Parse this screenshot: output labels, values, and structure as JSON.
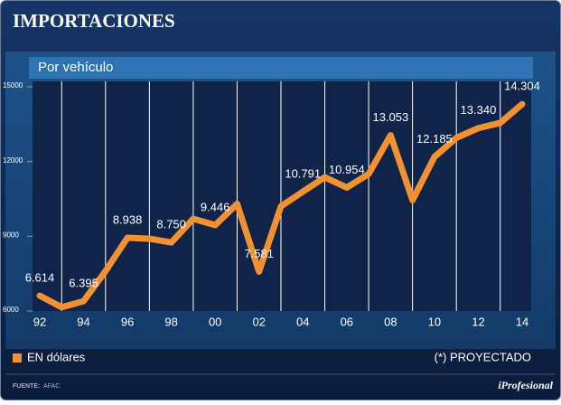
{
  "chart_data": {
    "type": "line",
    "title": "IMPORTACIONES",
    "subtitle": "Por vehículo",
    "categories": [
      "92",
      null,
      "94",
      null,
      "96",
      null,
      "98",
      null,
      "00",
      null,
      "02",
      null,
      "04",
      null,
      "06",
      null,
      "08",
      null,
      "10",
      null,
      "12",
      null,
      "14"
    ],
    "series": [
      {
        "name": "EN dólares",
        "color": "#f39130",
        "values": [
          6614,
          6150,
          6395,
          7600,
          8938,
          8900,
          8750,
          9700,
          9446,
          10300,
          7581,
          10200,
          10791,
          11370,
          10954,
          11500,
          13053,
          10450,
          12185,
          12950,
          13340,
          13550,
          14304
        ],
        "value_labels": [
          "6.614",
          null,
          "6.395",
          null,
          "8.938",
          null,
          "8.750",
          null,
          "9.446",
          null,
          "7.581",
          null,
          "10.791",
          null,
          "10.954",
          null,
          "13.053",
          null,
          "12.185",
          null,
          "13.340",
          null,
          "14.304"
        ]
      }
    ],
    "ylim": [
      6000,
      15000
    ],
    "yticks": [
      6000,
      9000,
      12000,
      15000
    ],
    "grid": true,
    "note": "(*) PROYECTADO",
    "source_label": "FUENTE:",
    "source": "AFAC",
    "brand": "iProfesional"
  }
}
